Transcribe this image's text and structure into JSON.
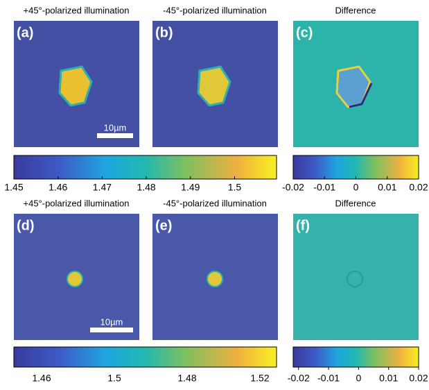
{
  "panels": [
    {
      "title": "+45°-polarized illumination",
      "label": "(a)",
      "scale_bar": "10µm"
    },
    {
      "title": "-45°-polarized illumination",
      "label": "(b)"
    },
    {
      "title": "Difference",
      "label": "(c)"
    },
    {
      "title": "+45°-polarized illumination",
      "label": "(d)",
      "scale_bar": "10µm"
    },
    {
      "title": "-45°-polarized illumination",
      "label": "(e)"
    },
    {
      "title": "Difference",
      "label": "(f)"
    }
  ],
  "colorbars": [
    {
      "lim": [
        1.45,
        1.5095
      ],
      "ticks": [
        1.45,
        1.46,
        1.47,
        1.48,
        1.49,
        1.5
      ]
    },
    {
      "lim": [
        -0.02,
        0.02
      ],
      "ticks": [
        -0.02,
        -0.01,
        0,
        0.01,
        0.02
      ]
    },
    {
      "ticks": [
        "1.46",
        "1.5",
        "1.48",
        "1.52"
      ]
    },
    {
      "lim": [
        -0.0218,
        0.02
      ],
      "ticks": [
        -0.02,
        -0.01,
        0,
        0.01,
        0.02
      ]
    }
  ]
}
